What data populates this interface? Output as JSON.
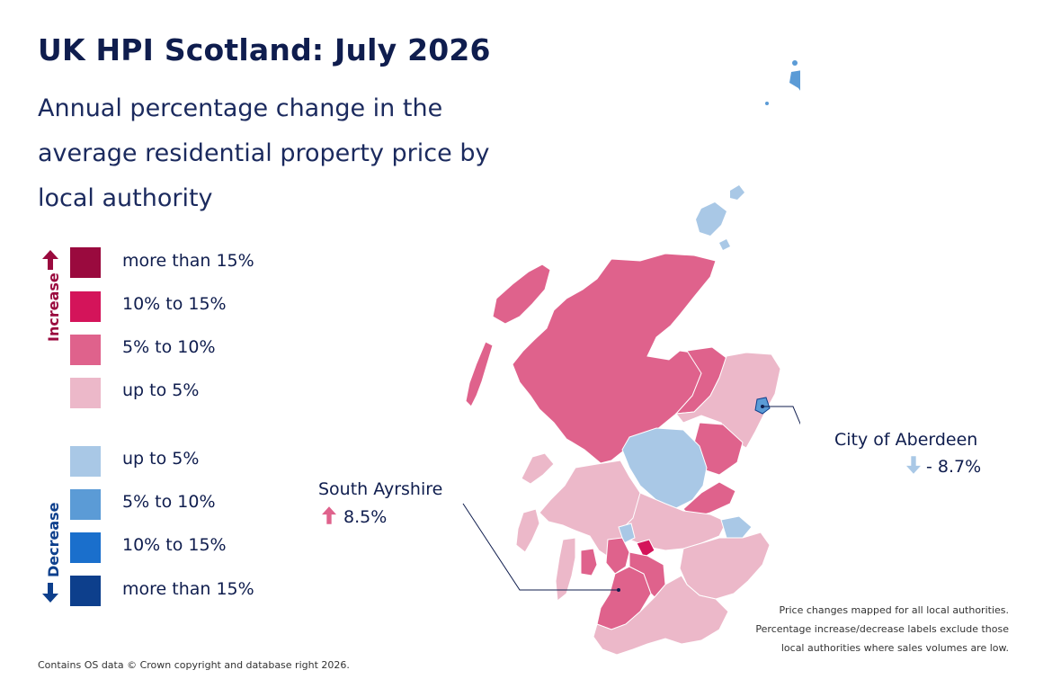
{
  "header": {
    "title": "UK HPI Scotland: July 2026",
    "subtitle": "Annual percentage change in the average residential property price by local authority"
  },
  "legend": {
    "increase_label": "Increase",
    "decrease_label": "Decrease",
    "increase_items": [
      {
        "label": "more than 15%",
        "color": "#9a0a3e"
      },
      {
        "label": "10% to 15%",
        "color": "#d4145a"
      },
      {
        "label": "5% to 10%",
        "color": "#df628c"
      },
      {
        "label": "up to 5%",
        "color": "#ecb8c9"
      }
    ],
    "decrease_items": [
      {
        "label": "up to 5%",
        "color": "#a9c8e6"
      },
      {
        "label": "5% to 10%",
        "color": "#5b9bd6"
      },
      {
        "label": "10% to 15%",
        "color": "#1a6fcc"
      },
      {
        "label": "more than 15%",
        "color": "#0d3f8c"
      }
    ]
  },
  "callouts": {
    "south_ayrshire": {
      "name": "South Ayrshire",
      "value": "8.5%",
      "direction": "increase"
    },
    "aberdeen": {
      "name": "City of Aberdeen",
      "value": "- 8.7%",
      "direction": "decrease"
    }
  },
  "footer": "Contains OS data © Crown copyright and database right 2026.",
  "note": "Price changes mapped for all local authorities. Percentage increase/decrease labels exclude those local authorities where sales volumes are low."
}
